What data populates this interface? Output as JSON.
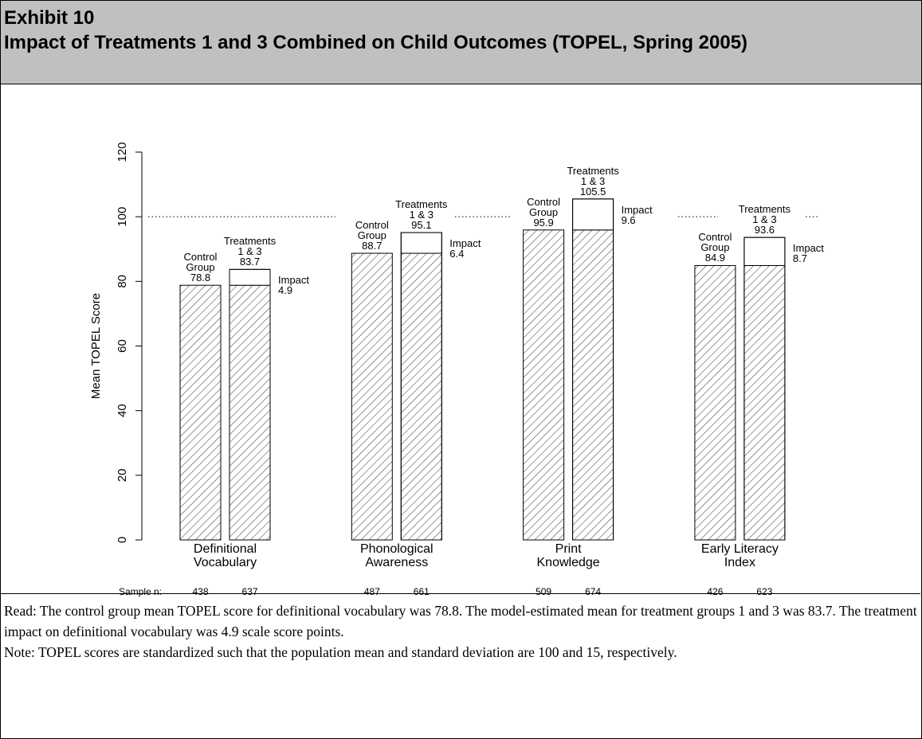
{
  "header": {
    "title": "Exhibit 10",
    "subtitle": "Impact of Treatments 1 and 3 Combined on Child Outcomes (TOPEL, Spring 2005)"
  },
  "chart_data": {
    "type": "impact_bar",
    "ylabel": "Mean TOPEL Score",
    "categories": [
      "Definitional\nVocabulary",
      "Phonological\nAwareness",
      "Print\nKnowledge",
      "Early Literacy\nIndex"
    ],
    "ylim": [
      0,
      120
    ],
    "yticks": [
      0,
      20,
      40,
      60,
      80,
      100,
      120
    ],
    "reference_line": 100,
    "sample_label": "Sample n:",
    "series": [
      {
        "name": "Control\nGroup",
        "values": [
          78.8,
          88.7,
          95.9,
          84.9
        ],
        "sample_n": [
          438,
          487,
          509,
          426
        ]
      },
      {
        "name": "Treatments\n1 & 3",
        "values": [
          83.7,
          95.1,
          105.5,
          93.6
        ],
        "sample_n": [
          637,
          661,
          674,
          623
        ]
      },
      {
        "name": "Impact",
        "values": [
          4.9,
          6.4,
          9.6,
          8.7
        ]
      }
    ]
  },
  "notes": [
    "Read: The control group mean TOPEL score for definitional vocabulary was 78.8. The model-estimated mean for treatment groups 1 and 3 was 83.7. The treatment impact on definitional vocabulary was 4.9 scale score points.",
    "Note: TOPEL scores are standardized such that the population mean and standard deviation are 100 and 15, respectively."
  ]
}
